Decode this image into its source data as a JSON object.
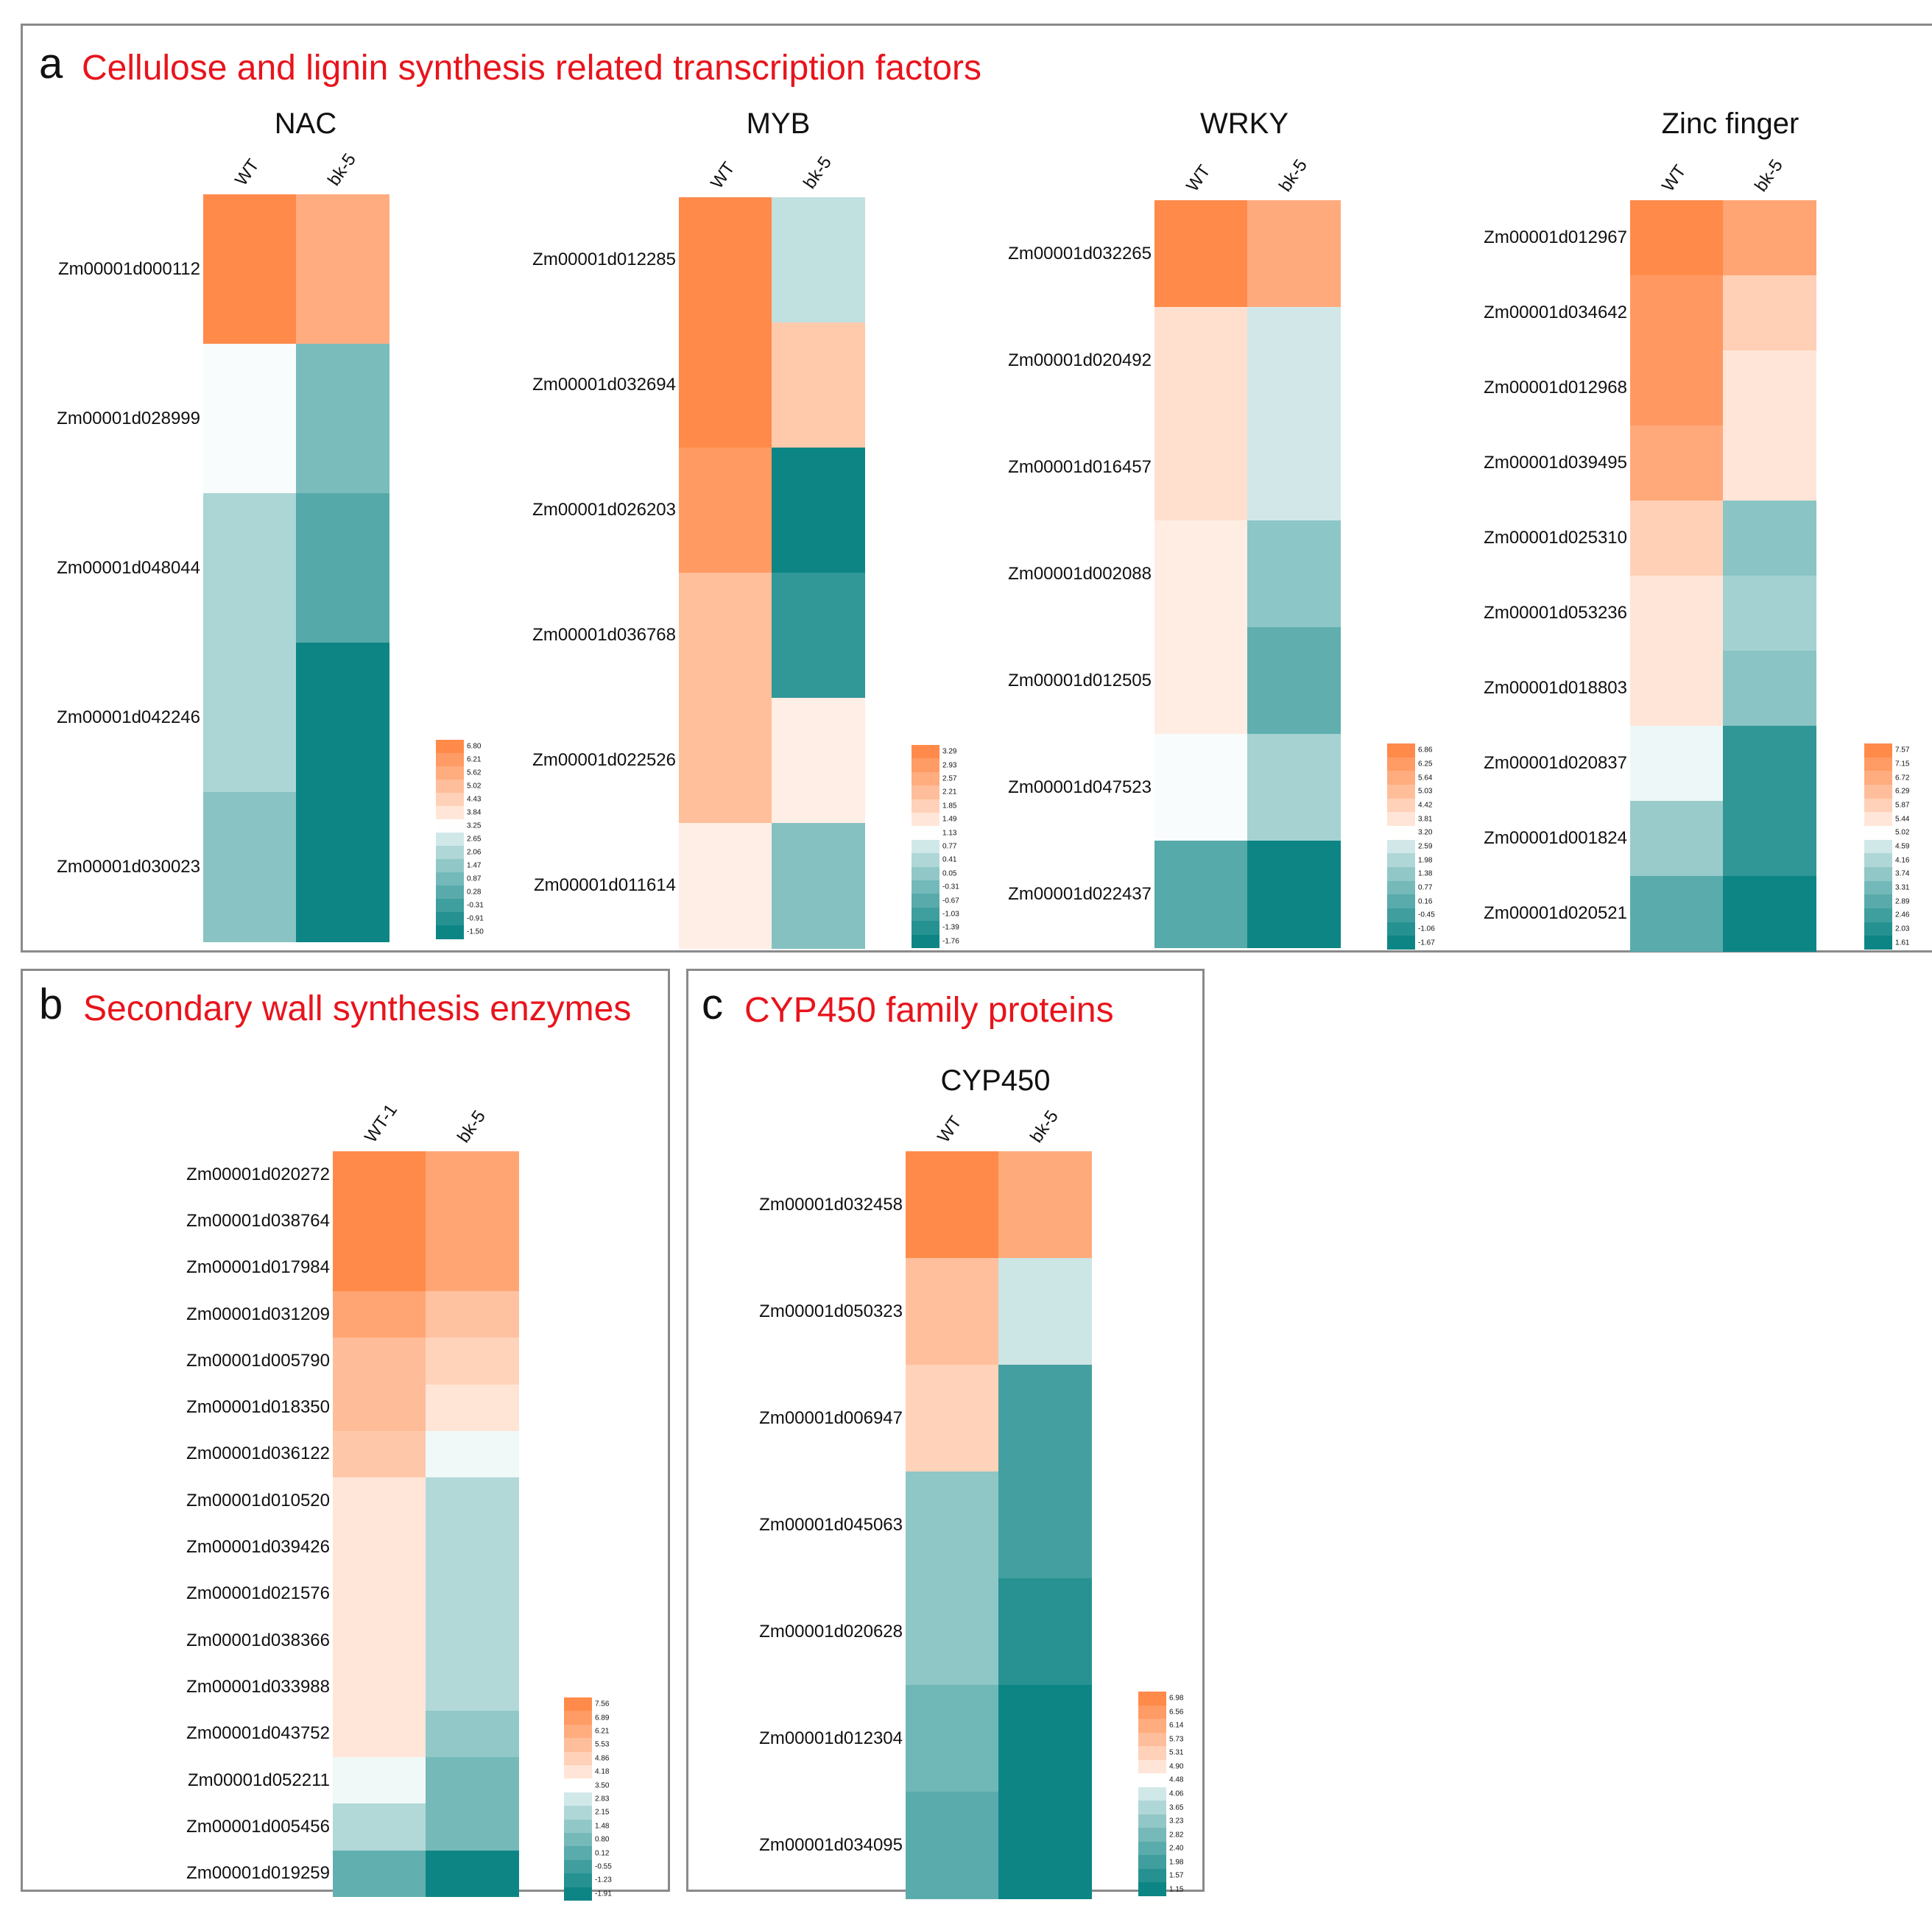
{
  "panels": {
    "a": {
      "letter": "a",
      "title": "Cellulose and lignin synthesis related transcription factors"
    },
    "b": {
      "letter": "b",
      "title": "Secondary wall synthesis enzymes"
    },
    "c": {
      "letter": "c",
      "title": "CYP450 family proteins"
    }
  },
  "colors": {
    "high": "#ff8a4a",
    "mid": "#ffffff",
    "low": "#0e8585",
    "border": "#8a8a8a",
    "title_red": "#e8141c"
  },
  "chart_data": [
    {
      "type": "heatmap",
      "id": "nac",
      "panel": "a",
      "title": "NAC",
      "columns": [
        "WT",
        "bk-5"
      ],
      "rows": [
        "Zm00001d000112",
        "Zm00001d028999",
        "Zm00001d048044",
        "Zm00001d042246",
        "Zm00001d030023"
      ],
      "values": [
        [
          6.8,
          5.6
        ],
        [
          3.2,
          1.0
        ],
        [
          2.0,
          0.2
        ],
        [
          2.0,
          -1.5
        ],
        [
          1.3,
          -1.5
        ]
      ],
      "legend_ticks": [
        "6.80",
        "6.21",
        "5.62",
        "5.02",
        "4.43",
        "3.84",
        "3.25",
        "2.65",
        "2.06",
        "1.47",
        "0.87",
        "0.28",
        "-0.31",
        "-0.91",
        "-1.50"
      ],
      "vmin": -1.5,
      "vmax": 6.8,
      "vmid": 3.25
    },
    {
      "type": "heatmap",
      "id": "myb",
      "panel": "a",
      "title": "MYB",
      "columns": [
        "WT",
        "bk-5"
      ],
      "rows": [
        "Zm00001d012285",
        "Zm00001d032694",
        "Zm00001d026203",
        "Zm00001d036768",
        "Zm00001d022526",
        "Zm00001d011614"
      ],
      "values": [
        [
          3.29,
          0.6
        ],
        [
          3.29,
          2.0
        ],
        [
          2.95,
          -1.76
        ],
        [
          2.2,
          -1.25
        ],
        [
          2.2,
          1.35
        ],
        [
          1.35,
          -0.1
        ]
      ],
      "legend_ticks": [
        "3.29",
        "2.93",
        "2.57",
        "2.21",
        "1.85",
        "1.49",
        "1.13",
        "0.77",
        "0.41",
        "0.05",
        "-0.31",
        "-0.67",
        "-1.03",
        "-1.39",
        "-1.76"
      ],
      "vmin": -1.76,
      "vmax": 3.29,
      "vmid": 1.13
    },
    {
      "type": "heatmap",
      "id": "wrky",
      "panel": "a",
      "title": "WRKY",
      "columns": [
        "WT",
        "bk-5"
      ],
      "rows": [
        "Zm00001d032265",
        "Zm00001d020492",
        "Zm00001d016457",
        "Zm00001d002088",
        "Zm00001d012505",
        "Zm00001d047523",
        "Zm00001d022437"
      ],
      "values": [
        [
          6.86,
          5.7
        ],
        [
          4.0,
          2.6
        ],
        [
          4.0,
          2.6
        ],
        [
          3.6,
          1.3
        ],
        [
          3.6,
          0.3
        ],
        [
          3.15,
          1.8
        ],
        [
          0.1,
          -1.67
        ]
      ],
      "legend_ticks": [
        "6.86",
        "6.25",
        "5.64",
        "5.03",
        "4.42",
        "3.81",
        "3.20",
        "2.59",
        "1.98",
        "1.38",
        "0.77",
        "0.16",
        "-0.45",
        "-1.06",
        "-1.67"
      ],
      "vmin": -1.67,
      "vmax": 6.86,
      "vmid": 3.2
    },
    {
      "type": "heatmap",
      "id": "zinc",
      "panel": "a",
      "title": "Zinc finger",
      "columns": [
        "WT",
        "bk-5"
      ],
      "rows": [
        "Zm00001d012967",
        "Zm00001d034642",
        "Zm00001d012968",
        "Zm00001d039495",
        "Zm00001d025310",
        "Zm00001d053236",
        "Zm00001d018803",
        "Zm00001d020837",
        "Zm00001d001824",
        "Zm00001d020521"
      ],
      "values": [
        [
          7.57,
          6.9
        ],
        [
          7.2,
          5.9
        ],
        [
          7.2,
          5.45
        ],
        [
          6.8,
          5.45
        ],
        [
          5.9,
          3.65
        ],
        [
          5.45,
          4.0
        ],
        [
          5.45,
          3.65
        ],
        [
          4.9,
          2.2
        ],
        [
          3.85,
          2.2
        ],
        [
          2.9,
          1.61
        ]
      ],
      "legend_ticks": [
        "7.57",
        "7.15",
        "6.72",
        "6.29",
        "5.87",
        "5.44",
        "5.02",
        "4.59",
        "4.16",
        "3.74",
        "3.31",
        "2.89",
        "2.46",
        "2.03",
        "1.61"
      ],
      "vmin": 1.61,
      "vmax": 7.57,
      "vmid": 5.02
    },
    {
      "type": "heatmap",
      "id": "secwall",
      "panel": "b",
      "title": "",
      "columns": [
        "WT-1",
        "bk-5"
      ],
      "rows": [
        "Zm00001d020272",
        "Zm00001d038764",
        "Zm00001d017984",
        "Zm00001d031209",
        "Zm00001d005790",
        "Zm00001d018350",
        "Zm00001d036122",
        "Zm00001d010520",
        "Zm00001d039426",
        "Zm00001d021576",
        "Zm00001d038366",
        "Zm00001d033988",
        "Zm00001d043752",
        "Zm00001d052211",
        "Zm00001d005456",
        "Zm00001d019259"
      ],
      "values": [
        [
          7.56,
          6.5
        ],
        [
          7.56,
          6.5
        ],
        [
          7.56,
          6.5
        ],
        [
          6.5,
          5.4
        ],
        [
          5.6,
          4.8
        ],
        [
          5.6,
          4.2
        ],
        [
          5.2,
          3.35
        ],
        [
          4.15,
          2.2
        ],
        [
          4.15,
          2.2
        ],
        [
          4.15,
          2.2
        ],
        [
          4.15,
          2.2
        ],
        [
          4.15,
          2.2
        ],
        [
          4.15,
          1.5
        ],
        [
          3.35,
          0.8
        ],
        [
          2.2,
          0.8
        ],
        [
          0.3,
          -1.91
        ]
      ],
      "legend_ticks": [
        "7.56",
        "6.89",
        "6.21",
        "5.53",
        "4.86",
        "4.18",
        "3.50",
        "2.83",
        "2.15",
        "1.48",
        "0.80",
        "0.12",
        "-0.55",
        "-1.23",
        "-1.91"
      ],
      "vmin": -1.91,
      "vmax": 7.56,
      "vmid": 3.5
    },
    {
      "type": "heatmap",
      "id": "cyp450",
      "panel": "c",
      "title": "CYP450",
      "columns": [
        "WT",
        "bk-5"
      ],
      "rows": [
        "Zm00001d032458",
        "Zm00001d050323",
        "Zm00001d006947",
        "Zm00001d045063",
        "Zm00001d020628",
        "Zm00001d012304",
        "Zm00001d034095"
      ],
      "values": [
        [
          6.98,
          6.2
        ],
        [
          5.7,
          4.0
        ],
        [
          5.3,
          2.05
        ],
        [
          3.2,
          2.05
        ],
        [
          3.2,
          1.6
        ],
        [
          2.75,
          1.15
        ],
        [
          2.4,
          1.15
        ]
      ],
      "legend_ticks": [
        "6.98",
        "6.56",
        "6.14",
        "5.73",
        "5.31",
        "4.90",
        "4.48",
        "4.06",
        "3.65",
        "3.23",
        "2.82",
        "2.40",
        "1.98",
        "1.57",
        "1.15"
      ],
      "vmin": 1.15,
      "vmax": 6.98,
      "vmid": 4.48
    }
  ]
}
